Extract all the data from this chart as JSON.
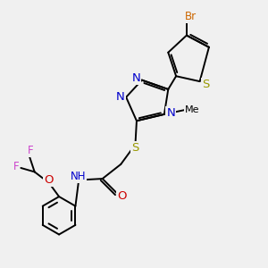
{
  "background_color": "#f0f0f0",
  "atom_colors": {
    "Br": "#cc6600",
    "S": "#999900",
    "N": "#0000cc",
    "O": "#cc0000",
    "F": "#cc44cc",
    "H": "#888888",
    "C": "#000000"
  },
  "bond_lw": 1.4,
  "font_size": 8.5,
  "fig_size": [
    3.0,
    3.0
  ],
  "dpi": 100
}
